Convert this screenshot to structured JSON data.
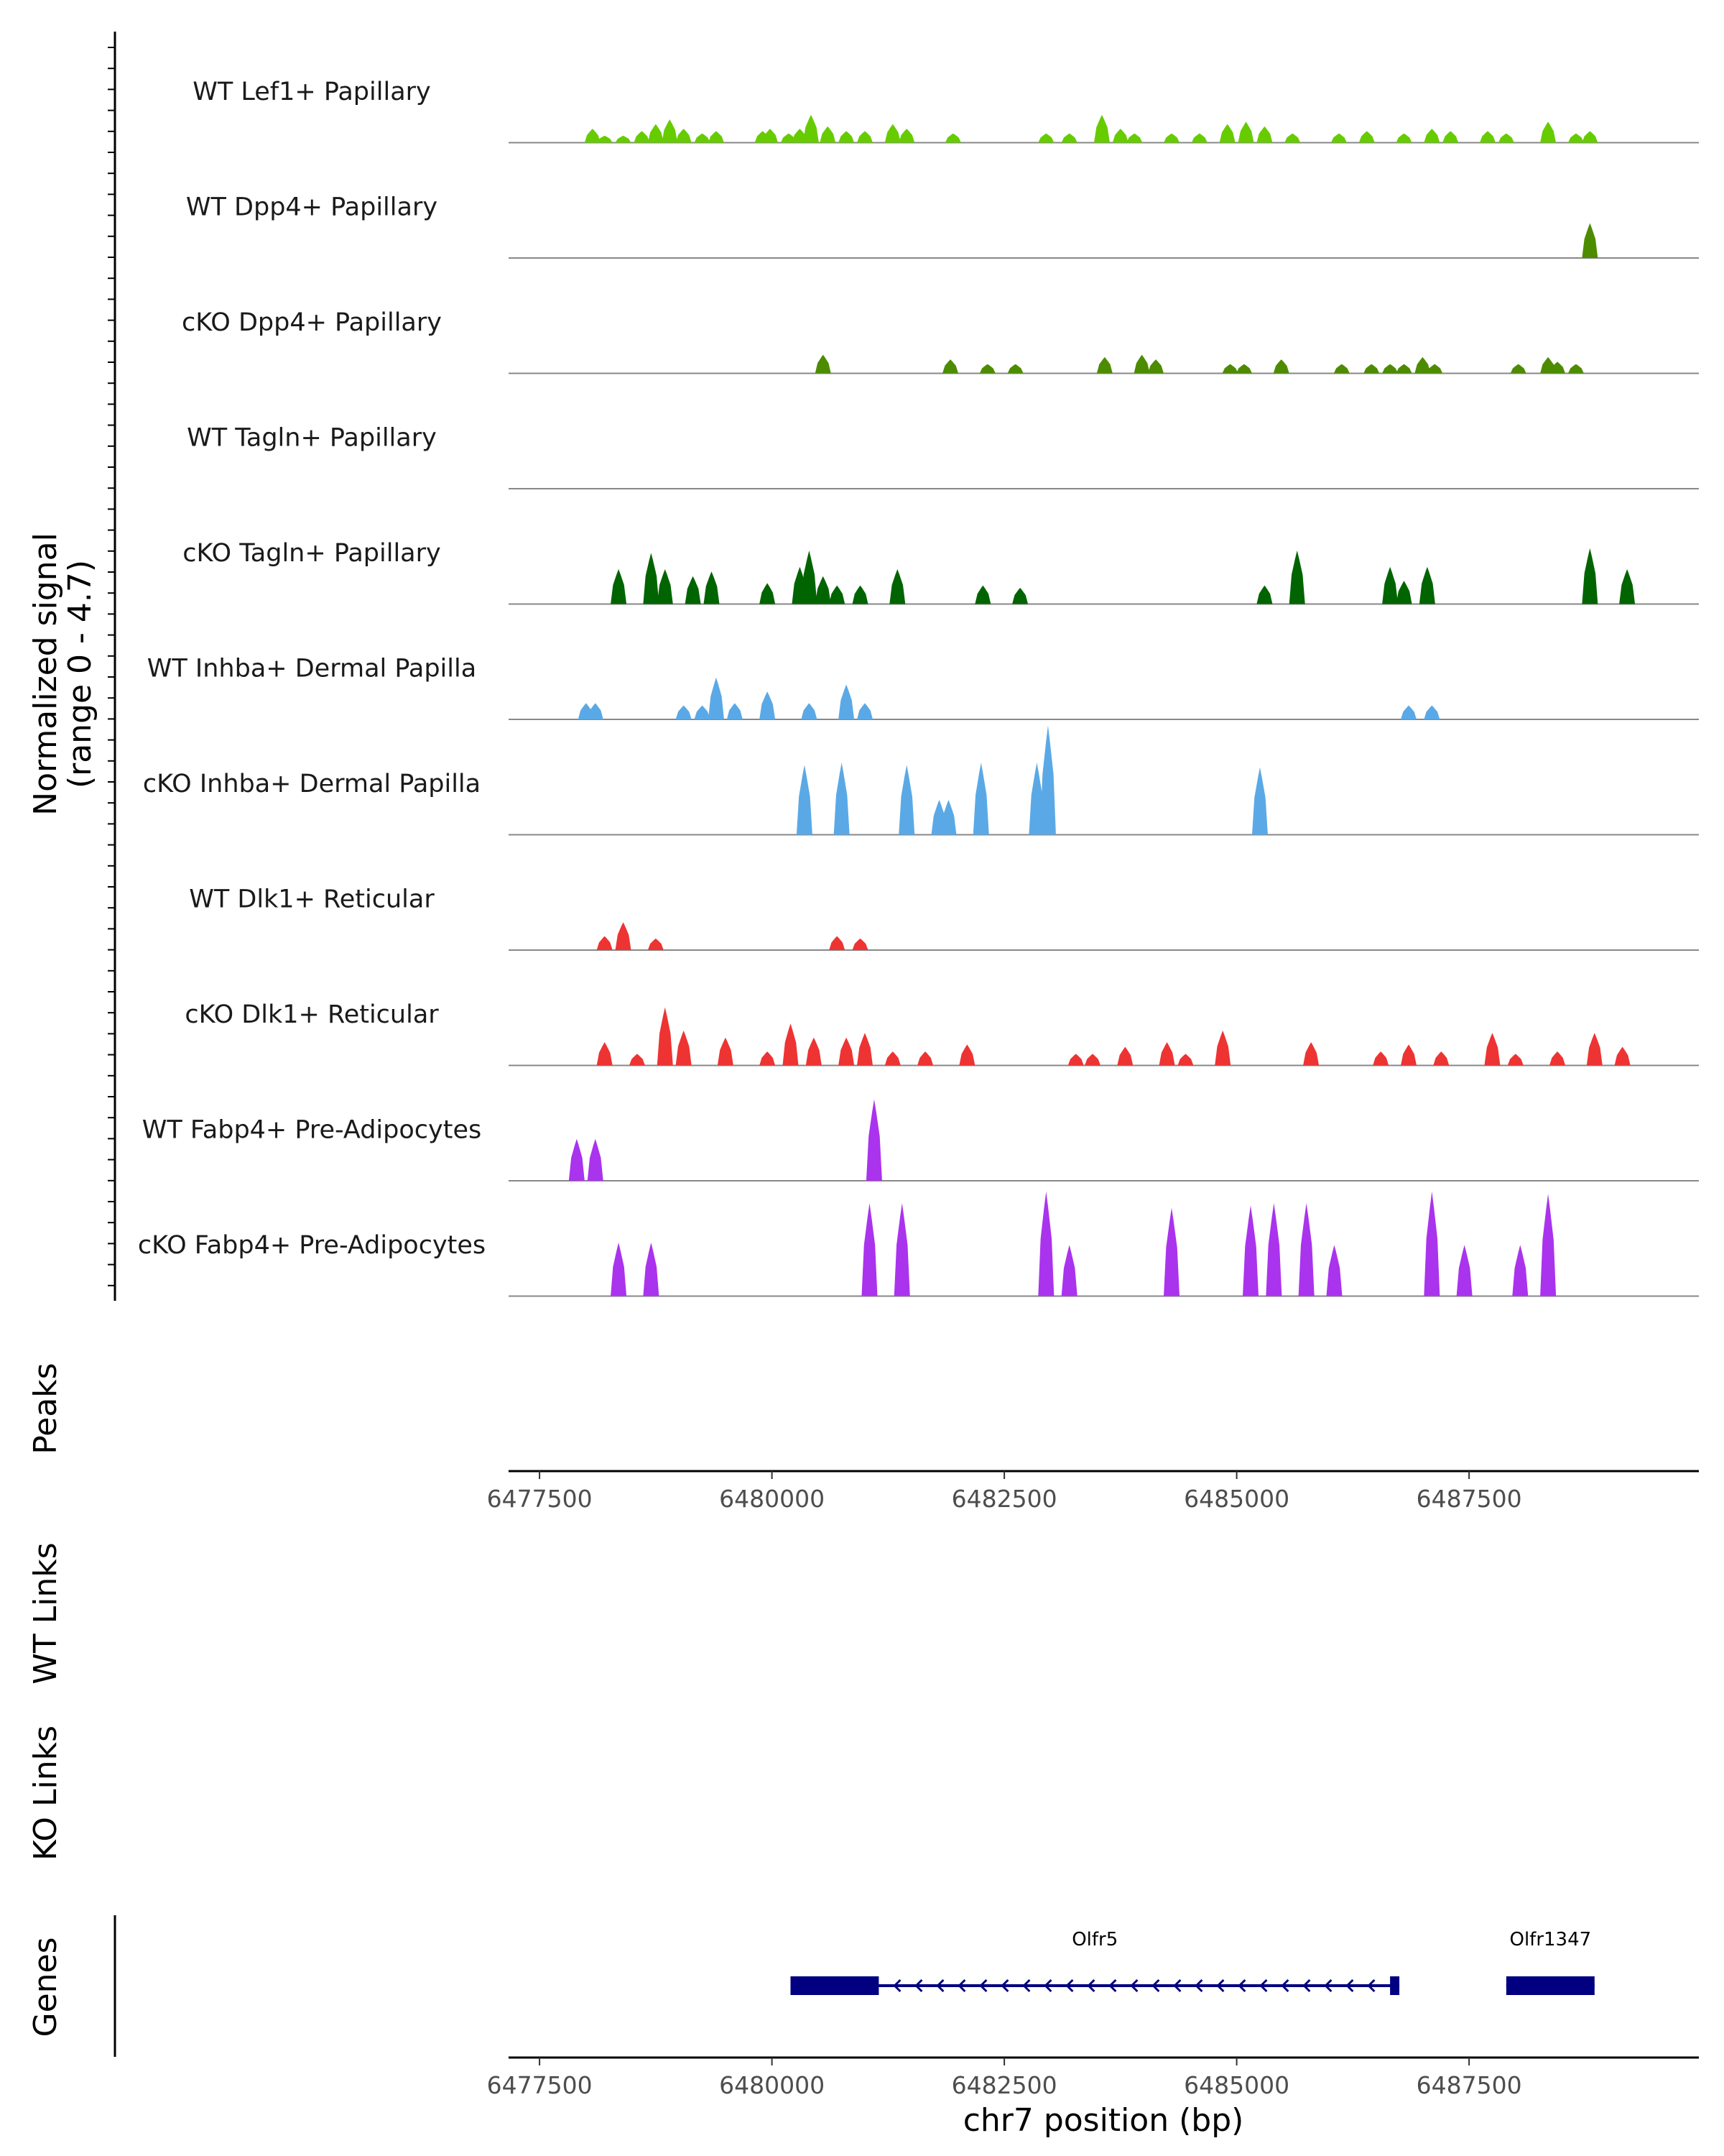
{
  "chart_data": {
    "type": "area",
    "y_axis_label_line1": "Normalized signal",
    "y_axis_label_line2": "(range 0 - 4.7)",
    "y_range": [
      0,
      4.7
    ],
    "x_range": [
      6477167,
      6489972
    ],
    "x_axis_label": "chr7 position (bp)",
    "x_ticks": [
      {
        "value": 6477500,
        "label": "6477500"
      },
      {
        "value": 6480000,
        "label": "6480000"
      },
      {
        "value": 6482500,
        "label": "6482500"
      },
      {
        "value": 6485000,
        "label": "6485000"
      },
      {
        "value": 6487500,
        "label": "6487500"
      }
    ],
    "tracks": [
      {
        "name": "WT Lef1+ Papillary",
        "color": "#66cc00",
        "peaks": [
          [
            6478070,
            0.6
          ],
          [
            6478200,
            0.3
          ],
          [
            6478400,
            0.3
          ],
          [
            6478600,
            0.5
          ],
          [
            6478750,
            0.8
          ],
          [
            6478900,
            1.0
          ],
          [
            6479050,
            0.6
          ],
          [
            6479250,
            0.4
          ],
          [
            6479400,
            0.5
          ],
          [
            6479900,
            0.5
          ],
          [
            6479980,
            0.6
          ],
          [
            6480180,
            0.4
          ],
          [
            6480300,
            0.6
          ],
          [
            6480420,
            1.2
          ],
          [
            6480600,
            0.7
          ],
          [
            6480800,
            0.5
          ],
          [
            6481000,
            0.5
          ],
          [
            6481300,
            0.8
          ],
          [
            6481450,
            0.6
          ],
          [
            6481950,
            0.4
          ],
          [
            6482950,
            0.4
          ],
          [
            6483200,
            0.4
          ],
          [
            6483550,
            1.2
          ],
          [
            6483750,
            0.6
          ],
          [
            6483900,
            0.4
          ],
          [
            6484300,
            0.4
          ],
          [
            6484600,
            0.4
          ],
          [
            6484900,
            0.8
          ],
          [
            6485100,
            0.9
          ],
          [
            6485300,
            0.7
          ],
          [
            6485600,
            0.4
          ],
          [
            6486100,
            0.4
          ],
          [
            6486400,
            0.5
          ],
          [
            6486800,
            0.4
          ],
          [
            6487100,
            0.6
          ],
          [
            6487300,
            0.5
          ],
          [
            6487700,
            0.5
          ],
          [
            6487900,
            0.4
          ],
          [
            6488350,
            0.9
          ],
          [
            6488650,
            0.4
          ],
          [
            6488800,
            0.5
          ]
        ]
      },
      {
        "name": "WT Dpp4+ Papillary",
        "color": "#4d8c00",
        "peaks": [
          [
            6488800,
            1.5
          ]
        ]
      },
      {
        "name": "cKO Dpp4+ Papillary",
        "color": "#4d8c00",
        "peaks": [
          [
            6480550,
            0.8
          ],
          [
            6481920,
            0.6
          ],
          [
            6482320,
            0.4
          ],
          [
            6482620,
            0.4
          ],
          [
            6483580,
            0.7
          ],
          [
            6483980,
            0.8
          ],
          [
            6484130,
            0.6
          ],
          [
            6484930,
            0.4
          ],
          [
            6485080,
            0.4
          ],
          [
            6485480,
            0.6
          ],
          [
            6486130,
            0.4
          ],
          [
            6486450,
            0.4
          ],
          [
            6486650,
            0.4
          ],
          [
            6486800,
            0.4
          ],
          [
            6487000,
            0.7
          ],
          [
            6487130,
            0.4
          ],
          [
            6488030,
            0.4
          ],
          [
            6488350,
            0.7
          ],
          [
            6488450,
            0.5
          ],
          [
            6488650,
            0.4
          ]
        ]
      },
      {
        "name": "WT Tagln+ Papillary",
        "color": "#006400",
        "peaks": []
      },
      {
        "name": "cKO Tagln+ Papillary",
        "color": "#006400",
        "peaks": [
          [
            6478350,
            1.5
          ],
          [
            6478700,
            2.2
          ],
          [
            6478850,
            1.5
          ],
          [
            6479150,
            1.2
          ],
          [
            6479350,
            1.4
          ],
          [
            6479950,
            0.9
          ],
          [
            6480300,
            1.6
          ],
          [
            6480400,
            2.3
          ],
          [
            6480550,
            1.2
          ],
          [
            6480700,
            0.8
          ],
          [
            6480950,
            0.8
          ],
          [
            6481350,
            1.5
          ],
          [
            6482270,
            0.8
          ],
          [
            6482670,
            0.7
          ],
          [
            6485300,
            0.8
          ],
          [
            6485650,
            2.3
          ],
          [
            6486650,
            1.6
          ],
          [
            6486800,
            1.0
          ],
          [
            6487050,
            1.6
          ],
          [
            6488800,
            2.4
          ],
          [
            6489200,
            1.5
          ]
        ]
      },
      {
        "name": "WT Inhba+ Dermal Papilla",
        "color": "#5aa9e6",
        "peaks": [
          [
            6478000,
            0.7
          ],
          [
            6478100,
            0.7
          ],
          [
            6479050,
            0.6
          ],
          [
            6479250,
            0.6
          ],
          [
            6479400,
            1.8
          ],
          [
            6479600,
            0.7
          ],
          [
            6479950,
            1.2
          ],
          [
            6480400,
            0.7
          ],
          [
            6480800,
            1.5
          ],
          [
            6481000,
            0.7
          ],
          [
            6486850,
            0.6
          ],
          [
            6487100,
            0.6
          ]
        ]
      },
      {
        "name": "cKO Inhba+ Dermal Papilla",
        "color": "#5aa9e6",
        "peaks": [
          [
            6480350,
            3.0
          ],
          [
            6480750,
            3.1
          ],
          [
            6481450,
            3.0
          ],
          [
            6481800,
            1.5
          ],
          [
            6481900,
            1.5
          ],
          [
            6482250,
            3.1
          ],
          [
            6482850,
            3.1
          ],
          [
            6482970,
            4.7
          ],
          [
            6485250,
            2.9
          ]
        ]
      },
      {
        "name": "WT Dlk1+ Reticular",
        "color": "#ee3333",
        "peaks": [
          [
            6478200,
            0.6
          ],
          [
            6478400,
            1.2
          ],
          [
            6478750,
            0.5
          ],
          [
            6480700,
            0.6
          ],
          [
            6480950,
            0.5
          ]
        ]
      },
      {
        "name": "cKO Dlk1+ Reticular",
        "color": "#ee3333",
        "peaks": [
          [
            6478200,
            1.0
          ],
          [
            6478550,
            0.5
          ],
          [
            6478850,
            2.5
          ],
          [
            6479050,
            1.5
          ],
          [
            6479500,
            1.2
          ],
          [
            6479950,
            0.6
          ],
          [
            6480200,
            1.8
          ],
          [
            6480450,
            1.2
          ],
          [
            6480800,
            1.2
          ],
          [
            6481000,
            1.4
          ],
          [
            6481300,
            0.6
          ],
          [
            6481650,
            0.6
          ],
          [
            6482100,
            0.9
          ],
          [
            6483270,
            0.5
          ],
          [
            6483450,
            0.5
          ],
          [
            6483800,
            0.8
          ],
          [
            6484250,
            1.0
          ],
          [
            6484450,
            0.5
          ],
          [
            6484850,
            1.5
          ],
          [
            6485800,
            1.0
          ],
          [
            6486550,
            0.6
          ],
          [
            6486850,
            0.9
          ],
          [
            6487200,
            0.6
          ],
          [
            6487750,
            1.4
          ],
          [
            6488000,
            0.5
          ],
          [
            6488450,
            0.6
          ],
          [
            6488850,
            1.4
          ],
          [
            6489150,
            0.8
          ]
        ]
      },
      {
        "name": "WT Fabp4+ Pre-Adipocytes",
        "color": "#aa33ee",
        "peaks": [
          [
            6477900,
            1.8
          ],
          [
            6478100,
            1.8
          ],
          [
            6481100,
            3.5
          ]
        ]
      },
      {
        "name": "cKO Fabp4+ Pre-Adipocytes",
        "color": "#aa33ee",
        "peaks": [
          [
            6478350,
            2.3
          ],
          [
            6478700,
            2.3
          ],
          [
            6481050,
            4.0
          ],
          [
            6481400,
            4.0
          ],
          [
            6482950,
            4.5
          ],
          [
            6483200,
            2.2
          ],
          [
            6484300,
            3.8
          ],
          [
            6485150,
            3.9
          ],
          [
            6485400,
            4.0
          ],
          [
            6485750,
            4.0
          ],
          [
            6486050,
            2.2
          ],
          [
            6487100,
            4.5
          ],
          [
            6487450,
            2.2
          ],
          [
            6488050,
            2.2
          ],
          [
            6488350,
            4.4
          ]
        ]
      }
    ],
    "empty_panels": [
      "Peaks",
      "WT Links",
      "KO Links"
    ],
    "genes_panel_label": "Genes",
    "genes": [
      {
        "name": "Olfr5",
        "start": 6480200,
        "end": 6486750,
        "strand": "-",
        "exon_blocks": [
          [
            6480200,
            6481150
          ],
          [
            6486650,
            6486750
          ]
        ]
      },
      {
        "name": "Olfr1347",
        "start": 6487900,
        "end": 6488850,
        "strand": "+",
        "exon_blocks": [
          [
            6487900,
            6488850
          ]
        ]
      }
    ],
    "colors": {
      "gene": "#000080",
      "baseline": "#888888",
      "axis": "#000000",
      "tick_text": "#4d4d4d"
    }
  }
}
